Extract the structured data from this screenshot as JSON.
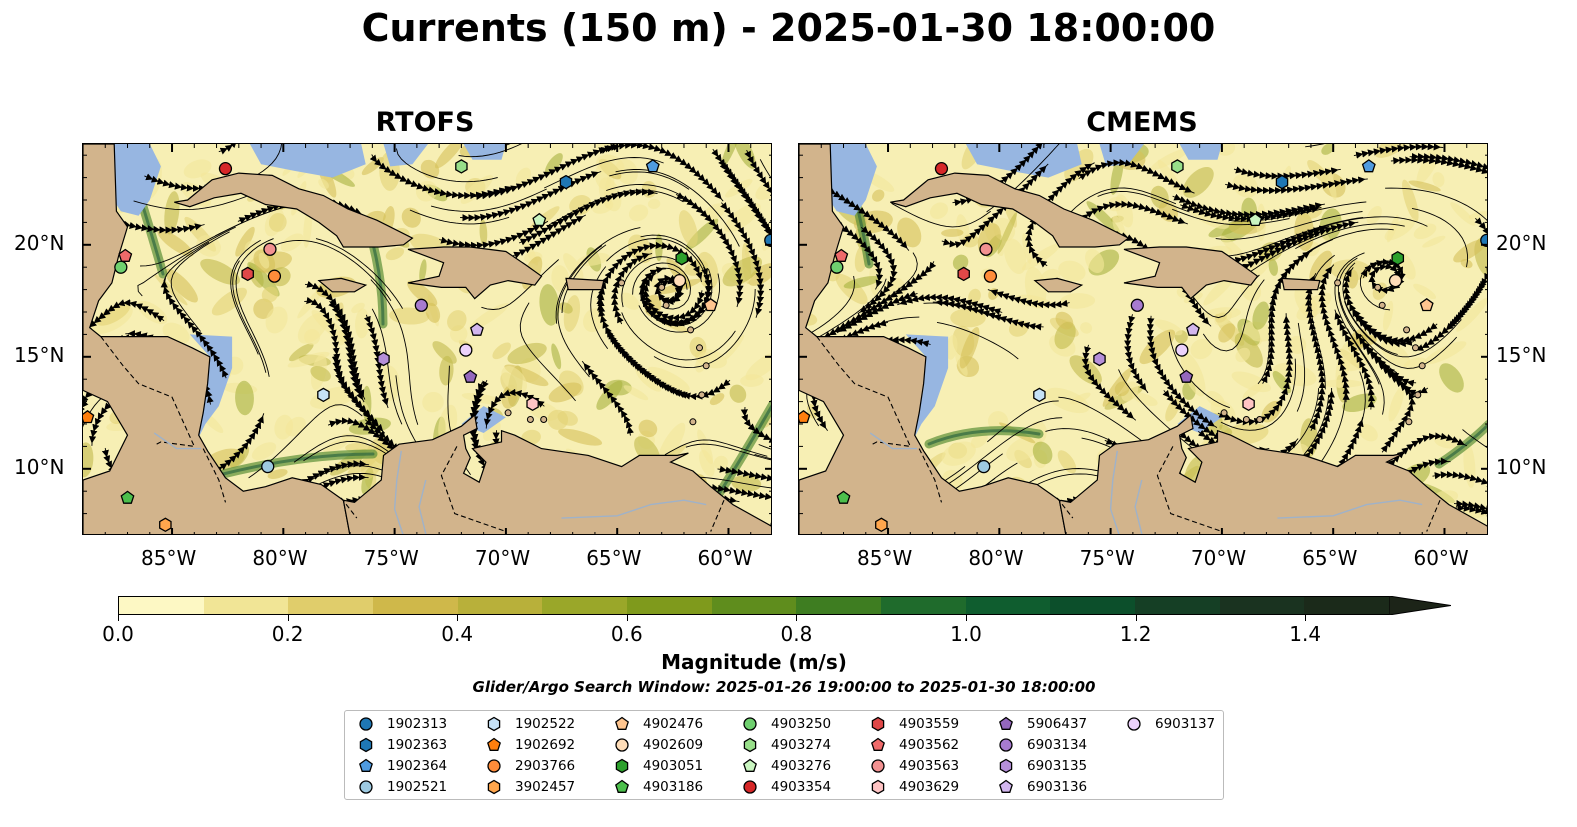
{
  "title": "Currents (150 m) - 2025-01-30 18:00:00",
  "panels": [
    {
      "name": "RTOFS"
    },
    {
      "name": "CMEMS"
    }
  ],
  "axes": {
    "lon_ticks": [
      "85°W",
      "80°W",
      "75°W",
      "70°W",
      "65°W",
      "60°W"
    ],
    "lat_ticks": [
      "20°N",
      "15°N",
      "10°N"
    ]
  },
  "colorbar": {
    "label": "Magnitude (m/s)",
    "ticks": [
      "0.0",
      "0.2",
      "0.4",
      "0.6",
      "0.8",
      "1.0",
      "1.2",
      "1.4"
    ],
    "colors": [
      "#fdf8c4",
      "#f1e596",
      "#e0cd6b",
      "#cfb84a",
      "#b8b03a",
      "#9aa729",
      "#7f9a1c",
      "#5f8d1d",
      "#3e7d21",
      "#1f6b2c",
      "#0f5d2f",
      "#0c4f2b",
      "#153f25",
      "#1a3320",
      "#1b2a1a",
      "#1c2418"
    ],
    "max_extend": true
  },
  "search_window": "Glider/Argo Search Window: 2025-01-26 19:00:00 to 2025-01-30 18:00:00",
  "colors": {
    "land": "#d2b48c",
    "shallow_water": "#97b6e1",
    "ocean_low": "#f7efb4"
  },
  "legend": [
    {
      "id": "1902313",
      "marker": "circle",
      "color": "#1f77b4"
    },
    {
      "id": "1902363",
      "marker": "hexagon",
      "color": "#1f77b4"
    },
    {
      "id": "1902364",
      "marker": "pentagon",
      "color": "#4f9be0"
    },
    {
      "id": "1902521",
      "marker": "circle",
      "color": "#9ecae1"
    },
    {
      "id": "1902522",
      "marker": "hexagon",
      "color": "#c6e2f7"
    },
    {
      "id": "1902692",
      "marker": "pentagon",
      "color": "#ff7f0e"
    },
    {
      "id": "2903766",
      "marker": "circle",
      "color": "#ff8c3a"
    },
    {
      "id": "3902457",
      "marker": "hexagon",
      "color": "#ffa64d"
    },
    {
      "id": "4902476",
      "marker": "pentagon",
      "color": "#ffc58f"
    },
    {
      "id": "4902609",
      "marker": "circle",
      "color": "#ffddb8"
    },
    {
      "id": "4903051",
      "marker": "hexagon",
      "color": "#2ca02c"
    },
    {
      "id": "4903186",
      "marker": "pentagon",
      "color": "#4cbf4c"
    },
    {
      "id": "4903250",
      "marker": "circle",
      "color": "#6fd06f"
    },
    {
      "id": "4903274",
      "marker": "hexagon",
      "color": "#98df8a"
    },
    {
      "id": "4903276",
      "marker": "pentagon",
      "color": "#c9f5c0"
    },
    {
      "id": "4903354",
      "marker": "circle",
      "color": "#d62728"
    },
    {
      "id": "4903559",
      "marker": "hexagon",
      "color": "#e04848"
    },
    {
      "id": "4903562",
      "marker": "pentagon",
      "color": "#ef6a6a"
    },
    {
      "id": "4903563",
      "marker": "circle",
      "color": "#f29191"
    },
    {
      "id": "4903629",
      "marker": "hexagon",
      "color": "#ffc4c4"
    },
    {
      "id": "5906437",
      "marker": "pentagon",
      "color": "#9467bd"
    },
    {
      "id": "6903134",
      "marker": "circle",
      "color": "#a77bcf"
    },
    {
      "id": "6903135",
      "marker": "hexagon",
      "color": "#b58fd9"
    },
    {
      "id": "6903136",
      "marker": "pentagon",
      "color": "#d2b6ee"
    },
    {
      "id": "6903137",
      "marker": "circle",
      "color": "#ecd2fb"
    }
  ],
  "floats": [
    {
      "id": "4903354",
      "lon": -82.6,
      "lat": 23.4
    },
    {
      "id": "4903274",
      "lon": -72.0,
      "lat": 23.5
    },
    {
      "id": "1902364",
      "lon": -63.4,
      "lat": 23.5
    },
    {
      "id": "1902363",
      "lon": -67.3,
      "lat": 22.8
    },
    {
      "id": "4903276",
      "lon": -68.5,
      "lat": 21.1
    },
    {
      "id": "1902313",
      "lon": -58.1,
      "lat": 20.2
    },
    {
      "id": "4903562",
      "lon": -87.1,
      "lat": 19.5
    },
    {
      "id": "4903250",
      "lon": -87.3,
      "lat": 19.0
    },
    {
      "id": "4903563",
      "lon": -80.6,
      "lat": 19.8
    },
    {
      "id": "4903559",
      "lon": -81.6,
      "lat": 18.7
    },
    {
      "id": "2903766",
      "lon": -80.4,
      "lat": 18.6
    },
    {
      "id": "4903051",
      "lon": -62.1,
      "lat": 19.4
    },
    {
      "id": "4902609",
      "lon": -62.2,
      "lat": 18.4
    },
    {
      "id": "4902476",
      "lon": -60.8,
      "lat": 17.3
    },
    {
      "id": "6903134",
      "lon": -73.8,
      "lat": 17.3
    },
    {
      "id": "6903136",
      "lon": -71.3,
      "lat": 16.2
    },
    {
      "id": "6903137",
      "lon": -71.8,
      "lat": 15.3
    },
    {
      "id": "6903135",
      "lon": -75.5,
      "lat": 14.9
    },
    {
      "id": "5906437",
      "lon": -71.6,
      "lat": 14.1
    },
    {
      "id": "1902522",
      "lon": -78.2,
      "lat": 13.3
    },
    {
      "id": "4903629",
      "lon": -68.8,
      "lat": 12.9
    },
    {
      "id": "1902692",
      "lon": -88.8,
      "lat": 12.3
    },
    {
      "id": "1902521",
      "lon": -80.7,
      "lat": 10.1
    },
    {
      "id": "4903186",
      "lon": -87.0,
      "lat": 8.7
    },
    {
      "id": "3902457",
      "lon": -85.3,
      "lat": 7.5
    }
  ],
  "map_extent": {
    "lon": [
      -89,
      -58
    ],
    "lat": [
      7,
      24.5
    ]
  }
}
